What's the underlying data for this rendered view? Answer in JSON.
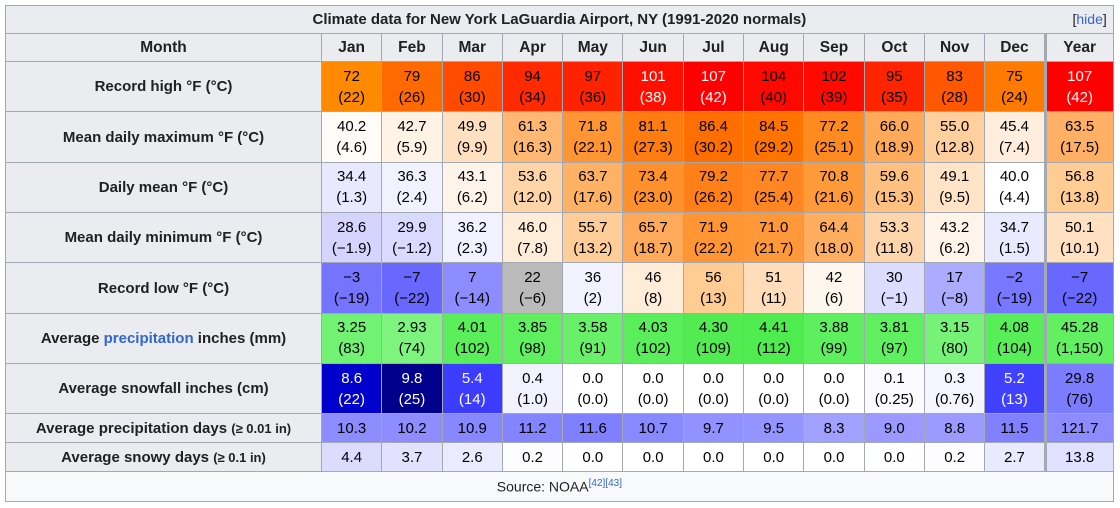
{
  "title": "Climate data for New York LaGuardia Airport, NY (1991-2020 normals)",
  "hide_label": "hide",
  "header": {
    "month_label": "Month",
    "columns": [
      "Jan",
      "Feb",
      "Mar",
      "Apr",
      "May",
      "Jun",
      "Jul",
      "Aug",
      "Sep",
      "Oct",
      "Nov",
      "Dec",
      "Year"
    ]
  },
  "rows": [
    {
      "label": "Record high °F (°C)",
      "two_line": true,
      "cells": [
        {
          "v": "72",
          "c": "(22)",
          "bg": "#ff8a00",
          "fg": "#000000"
        },
        {
          "v": "79",
          "c": "(26)",
          "bg": "#ff6a00",
          "fg": "#000000"
        },
        {
          "v": "86",
          "c": "(30)",
          "bg": "#ff4a00",
          "fg": "#000000"
        },
        {
          "v": "94",
          "c": "(34)",
          "bg": "#ff2a00",
          "fg": "#000000"
        },
        {
          "v": "97",
          "c": "(36)",
          "bg": "#ff2200",
          "fg": "#000000"
        },
        {
          "v": "101",
          "c": "(38)",
          "bg": "#ff0f00",
          "fg": "#ffffff"
        },
        {
          "v": "107",
          "c": "(42)",
          "bg": "#ff0000",
          "fg": "#ffffff"
        },
        {
          "v": "104",
          "c": "(40)",
          "bg": "#ff0800",
          "fg": "#000000"
        },
        {
          "v": "102",
          "c": "(39)",
          "bg": "#ff0a00",
          "fg": "#000000"
        },
        {
          "v": "95",
          "c": "(35)",
          "bg": "#ff2400",
          "fg": "#000000"
        },
        {
          "v": "83",
          "c": "(28)",
          "bg": "#ff5800",
          "fg": "#000000"
        },
        {
          "v": "75",
          "c": "(24)",
          "bg": "#ff7a00",
          "fg": "#000000"
        },
        {
          "v": "107",
          "c": "(42)",
          "bg": "#ff0000",
          "fg": "#ffffff"
        }
      ]
    },
    {
      "label": "Mean daily maximum °F (°C)",
      "two_line": true,
      "cells": [
        {
          "v": "40.2",
          "c": "(4.6)",
          "bg": "#fffcf8",
          "fg": "#000000"
        },
        {
          "v": "42.7",
          "c": "(5.9)",
          "bg": "#fff3e6",
          "fg": "#000000"
        },
        {
          "v": "49.9",
          "c": "(9.9)",
          "bg": "#ffe0c0",
          "fg": "#000000"
        },
        {
          "v": "61.3",
          "c": "(16.3)",
          "bg": "#ffb772",
          "fg": "#000000"
        },
        {
          "v": "71.8",
          "c": "(22.1)",
          "bg": "#ff9633",
          "fg": "#000000"
        },
        {
          "v": "81.1",
          "c": "(27.3)",
          "bg": "#ff7c10",
          "fg": "#000000"
        },
        {
          "v": "86.4",
          "c": "(30.2)",
          "bg": "#ff6e00",
          "fg": "#000000"
        },
        {
          "v": "84.5",
          "c": "(29.2)",
          "bg": "#ff7300",
          "fg": "#000000"
        },
        {
          "v": "77.2",
          "c": "(25.1)",
          "bg": "#ff8a20",
          "fg": "#000000"
        },
        {
          "v": "66.0",
          "c": "(18.9)",
          "bg": "#ffaa58",
          "fg": "#000000"
        },
        {
          "v": "55.0",
          "c": "(12.8)",
          "bg": "#ffd09e",
          "fg": "#000000"
        },
        {
          "v": "45.4",
          "c": "(7.4)",
          "bg": "#ffeedd",
          "fg": "#000000"
        },
        {
          "v": "63.5",
          "c": "(17.5)",
          "bg": "#ffb064",
          "fg": "#000000"
        }
      ]
    },
    {
      "label": "Daily mean °F (°C)",
      "two_line": true,
      "cells": [
        {
          "v": "34.4",
          "c": "(1.3)",
          "bg": "#e8e8ff",
          "fg": "#000000"
        },
        {
          "v": "36.3",
          "c": "(2.4)",
          "bg": "#f2f2ff",
          "fg": "#000000"
        },
        {
          "v": "43.1",
          "c": "(6.2)",
          "bg": "#fff4ea",
          "fg": "#000000"
        },
        {
          "v": "53.6",
          "c": "(12.0)",
          "bg": "#ffd5a8",
          "fg": "#000000"
        },
        {
          "v": "63.7",
          "c": "(17.6)",
          "bg": "#ffb264",
          "fg": "#000000"
        },
        {
          "v": "73.4",
          "c": "(23.0)",
          "bg": "#ff912c",
          "fg": "#000000"
        },
        {
          "v": "79.2",
          "c": "(26.2)",
          "bg": "#ff8018",
          "fg": "#000000"
        },
        {
          "v": "77.7",
          "c": "(25.4)",
          "bg": "#ff8620",
          "fg": "#000000"
        },
        {
          "v": "70.8",
          "c": "(21.6)",
          "bg": "#ff9a3a",
          "fg": "#000000"
        },
        {
          "v": "59.6",
          "c": "(15.3)",
          "bg": "#ffc080",
          "fg": "#000000"
        },
        {
          "v": "49.1",
          "c": "(9.5)",
          "bg": "#ffe4c8",
          "fg": "#000000"
        },
        {
          "v": "40.0",
          "c": "(4.4)",
          "bg": "#ffffff",
          "fg": "#000000"
        },
        {
          "v": "56.8",
          "c": "(13.8)",
          "bg": "#ffcc94",
          "fg": "#000000"
        }
      ]
    },
    {
      "label": "Mean daily minimum °F (°C)",
      "two_line": true,
      "cells": [
        {
          "v": "28.6",
          "c": "(−1.9)",
          "bg": "#d4d4ff",
          "fg": "#000000"
        },
        {
          "v": "29.9",
          "c": "(−1.2)",
          "bg": "#dadaff",
          "fg": "#000000"
        },
        {
          "v": "36.2",
          "c": "(2.3)",
          "bg": "#f1f1ff",
          "fg": "#000000"
        },
        {
          "v": "46.0",
          "c": "(7.8)",
          "bg": "#ffecd9",
          "fg": "#000000"
        },
        {
          "v": "55.7",
          "c": "(13.2)",
          "bg": "#ffcd98",
          "fg": "#000000"
        },
        {
          "v": "65.7",
          "c": "(18.7)",
          "bg": "#ffaa5a",
          "fg": "#000000"
        },
        {
          "v": "71.9",
          "c": "(22.2)",
          "bg": "#ff9533",
          "fg": "#000000"
        },
        {
          "v": "71.0",
          "c": "(21.7)",
          "bg": "#ff9838",
          "fg": "#000000"
        },
        {
          "v": "64.4",
          "c": "(18.0)",
          "bg": "#ffae60",
          "fg": "#000000"
        },
        {
          "v": "53.3",
          "c": "(11.8)",
          "bg": "#ffd6ab",
          "fg": "#000000"
        },
        {
          "v": "43.2",
          "c": "(6.2)",
          "bg": "#fff4ea",
          "fg": "#000000"
        },
        {
          "v": "34.7",
          "c": "(1.5)",
          "bg": "#eaeaff",
          "fg": "#000000"
        },
        {
          "v": "50.1",
          "c": "(10.1)",
          "bg": "#ffe0c0",
          "fg": "#000000"
        }
      ]
    },
    {
      "label": "Record low °F (°C)",
      "two_line": true,
      "cells": [
        {
          "v": "−3",
          "c": "(−19)",
          "bg": "#7474ff",
          "fg": "#000000"
        },
        {
          "v": "−7",
          "c": "(−22)",
          "bg": "#6868ff",
          "fg": "#000000"
        },
        {
          "v": "7",
          "c": "(−14)",
          "bg": "#8c8cff",
          "fg": "#000000"
        },
        {
          "v": "22",
          "c": "(−6)",
          "bg": "#bababa",
          "fg": "#000000"
        },
        {
          "v": "36",
          "c": "(2)",
          "bg": "#f2f2ff",
          "fg": "#000000"
        },
        {
          "v": "46",
          "c": "(8)",
          "bg": "#ffecd9",
          "fg": "#000000"
        },
        {
          "v": "56",
          "c": "(13)",
          "bg": "#ffcc94",
          "fg": "#000000"
        },
        {
          "v": "51",
          "c": "(11)",
          "bg": "#ffddba",
          "fg": "#000000"
        },
        {
          "v": "42",
          "c": "(6)",
          "bg": "#fff6ee",
          "fg": "#000000"
        },
        {
          "v": "30",
          "c": "(−1)",
          "bg": "#dcdcff",
          "fg": "#000000"
        },
        {
          "v": "17",
          "c": "(−8)",
          "bg": "#ababff",
          "fg": "#000000"
        },
        {
          "v": "−2",
          "c": "(−19)",
          "bg": "#7777ff",
          "fg": "#000000"
        },
        {
          "v": "−7",
          "c": "(−22)",
          "bg": "#6868ff",
          "fg": "#000000"
        }
      ]
    },
    {
      "label_pre": "Average ",
      "label_link": "precipitation",
      "label_post": " inches (mm)",
      "two_line": true,
      "cells": [
        {
          "v": "3.25",
          "c": "(83)",
          "bg": "#72f272",
          "fg": "#000000"
        },
        {
          "v": "2.93",
          "c": "(74)",
          "bg": "#7ef47e",
          "fg": "#000000"
        },
        {
          "v": "4.01",
          "c": "(102)",
          "bg": "#5aee5a",
          "fg": "#000000"
        },
        {
          "v": "3.85",
          "c": "(98)",
          "bg": "#5fef5f",
          "fg": "#000000"
        },
        {
          "v": "3.58",
          "c": "(91)",
          "bg": "#68f068",
          "fg": "#000000"
        },
        {
          "v": "4.03",
          "c": "(102)",
          "bg": "#5aee5a",
          "fg": "#000000"
        },
        {
          "v": "4.30",
          "c": "(109)",
          "bg": "#52ec52",
          "fg": "#000000"
        },
        {
          "v": "4.41",
          "c": "(112)",
          "bg": "#4eec4e",
          "fg": "#000000"
        },
        {
          "v": "3.88",
          "c": "(99)",
          "bg": "#5eef5e",
          "fg": "#000000"
        },
        {
          "v": "3.81",
          "c": "(97)",
          "bg": "#60ef60",
          "fg": "#000000"
        },
        {
          "v": "3.15",
          "c": "(80)",
          "bg": "#76f376",
          "fg": "#000000"
        },
        {
          "v": "4.08",
          "c": "(104)",
          "bg": "#58ee58",
          "fg": "#000000"
        },
        {
          "v": "45.28",
          "c": "(1,150)",
          "bg": "#62ef62",
          "fg": "#000000"
        }
      ]
    },
    {
      "label": "Average snowfall inches (cm)",
      "two_line": true,
      "cells": [
        {
          "v": "8.6",
          "c": "(22)",
          "bg": "#0000cc",
          "fg": "#ffffff"
        },
        {
          "v": "9.8",
          "c": "(25)",
          "bg": "#00008c",
          "fg": "#ffffff"
        },
        {
          "v": "5.4",
          "c": "(14)",
          "bg": "#3c3cff",
          "fg": "#ffffff"
        },
        {
          "v": "0.4",
          "c": "(1.0)",
          "bg": "#f2f2ff",
          "fg": "#000000"
        },
        {
          "v": "0.0",
          "c": "(0.0)",
          "bg": "#ffffff",
          "fg": "#000000"
        },
        {
          "v": "0.0",
          "c": "(0.0)",
          "bg": "#ffffff",
          "fg": "#000000"
        },
        {
          "v": "0.0",
          "c": "(0.0)",
          "bg": "#ffffff",
          "fg": "#000000"
        },
        {
          "v": "0.0",
          "c": "(0.0)",
          "bg": "#ffffff",
          "fg": "#000000"
        },
        {
          "v": "0.0",
          "c": "(0.0)",
          "bg": "#ffffff",
          "fg": "#000000"
        },
        {
          "v": "0.1",
          "c": "(0.25)",
          "bg": "#fbfbff",
          "fg": "#000000"
        },
        {
          "v": "0.3",
          "c": "(0.76)",
          "bg": "#f5f5ff",
          "fg": "#000000"
        },
        {
          "v": "5.2",
          "c": "(13)",
          "bg": "#4040ff",
          "fg": "#ffffff"
        },
        {
          "v": "29.8",
          "c": "(76)",
          "bg": "#7c7cff",
          "fg": "#000000"
        }
      ]
    },
    {
      "label": "Average precipitation days",
      "label_small": "(≥ 0.01 in)",
      "two_line": false,
      "cells": [
        {
          "v": "10.3",
          "bg": "#8c8cff",
          "fg": "#000000"
        },
        {
          "v": "10.2",
          "bg": "#8d8dff",
          "fg": "#000000"
        },
        {
          "v": "10.9",
          "bg": "#8787ff",
          "fg": "#000000"
        },
        {
          "v": "11.2",
          "bg": "#8484ff",
          "fg": "#000000"
        },
        {
          "v": "11.6",
          "bg": "#8080ff",
          "fg": "#000000"
        },
        {
          "v": "10.7",
          "bg": "#8888ff",
          "fg": "#000000"
        },
        {
          "v": "9.7",
          "bg": "#9292ff",
          "fg": "#000000"
        },
        {
          "v": "9.5",
          "bg": "#9494ff",
          "fg": "#000000"
        },
        {
          "v": "8.3",
          "bg": "#a0a0ff",
          "fg": "#000000"
        },
        {
          "v": "9.0",
          "bg": "#9999ff",
          "fg": "#000000"
        },
        {
          "v": "8.8",
          "bg": "#9b9bff",
          "fg": "#000000"
        },
        {
          "v": "11.5",
          "bg": "#8181ff",
          "fg": "#000000"
        },
        {
          "v": "121.7",
          "bg": "#8c8cff",
          "fg": "#000000"
        }
      ]
    },
    {
      "label": "Average snowy days",
      "label_small": "(≥ 0.1 in)",
      "two_line": false,
      "cells": [
        {
          "v": "4.4",
          "bg": "#dcdcff",
          "fg": "#000000"
        },
        {
          "v": "3.7",
          "bg": "#e2e2ff",
          "fg": "#000000"
        },
        {
          "v": "2.6",
          "bg": "#ebebff",
          "fg": "#000000"
        },
        {
          "v": "0.2",
          "bg": "#fdfdff",
          "fg": "#000000"
        },
        {
          "v": "0.0",
          "bg": "#ffffff",
          "fg": "#000000"
        },
        {
          "v": "0.0",
          "bg": "#ffffff",
          "fg": "#000000"
        },
        {
          "v": "0.0",
          "bg": "#ffffff",
          "fg": "#000000"
        },
        {
          "v": "0.0",
          "bg": "#ffffff",
          "fg": "#000000"
        },
        {
          "v": "0.0",
          "bg": "#ffffff",
          "fg": "#000000"
        },
        {
          "v": "0.0",
          "bg": "#ffffff",
          "fg": "#000000"
        },
        {
          "v": "0.2",
          "bg": "#fdfdff",
          "fg": "#000000"
        },
        {
          "v": "2.7",
          "bg": "#eaeaff",
          "fg": "#000000"
        },
        {
          "v": "13.8",
          "bg": "#e0e0ff",
          "fg": "#000000"
        }
      ]
    }
  ],
  "source": {
    "text": "Source: NOAA",
    "refs": "[42][43]"
  }
}
